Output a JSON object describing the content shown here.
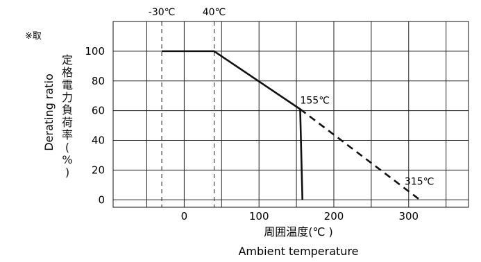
{
  "chart_data": {
    "type": "line",
    "x_ticks": [
      0,
      100,
      200,
      300
    ],
    "y_ticks": [
      0,
      20,
      40,
      60,
      80,
      100
    ],
    "xlim": [
      -95,
      380
    ],
    "ylim": [
      -5,
      120
    ],
    "grid": true,
    "corner_note": "※取",
    "xlabel_jp": "周囲温度(℃ )",
    "xlabel_en": "Ambient temperature",
    "ylabel_en": "Derating ratio",
    "ylabel_jp_chars": [
      "定",
      "格",
      "電",
      "力",
      "負",
      "荷",
      "率",
      "(",
      "%",
      ")"
    ],
    "vertical_markers": [
      {
        "x": -30,
        "label": "-30℃"
      },
      {
        "x": 40,
        "label": "40℃"
      }
    ],
    "series": [
      {
        "style": "solid",
        "points": [
          [
            -30,
            100
          ],
          [
            40,
            100
          ],
          [
            155,
            61
          ],
          [
            158,
            0
          ]
        ]
      },
      {
        "style": "dashed",
        "points": [
          [
            155,
            61
          ],
          [
            315,
            0
          ]
        ]
      }
    ],
    "annotations": [
      {
        "x": 155,
        "y": 61,
        "text": "155℃"
      },
      {
        "x": 315,
        "y": 0,
        "text": "315℃"
      }
    ]
  }
}
